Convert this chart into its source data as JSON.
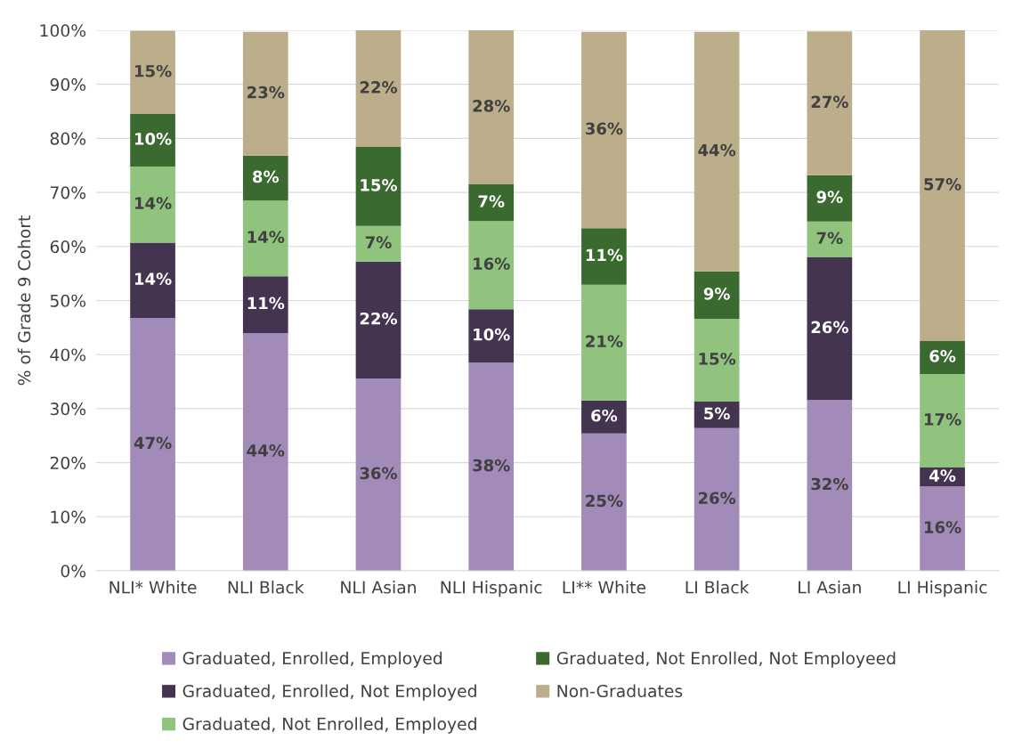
{
  "chart_data": {
    "type": "bar",
    "stacked": true,
    "ylabel": "% of Grade 9 Cohort",
    "categories": [
      "NLI* White",
      "NLI Black",
      "NLI Asian",
      "NLI Hispanic",
      "LI** White",
      "LI Black",
      "LI Asian",
      "LI Hispanic"
    ],
    "series": [
      {
        "name": "Graduated, Enrolled, Employed",
        "color": "#a28ab9",
        "values": [
          46.8,
          44.0,
          35.6,
          38.5,
          25.4,
          26.4,
          31.6,
          15.6
        ],
        "value_labels": [
          "47%",
          "44%",
          "36%",
          "38%",
          "25%",
          "26%",
          "32%",
          "16%"
        ]
      },
      {
        "name": "Graduated, Enrolled, Not Employed",
        "color": "#45344f",
        "values": [
          13.9,
          10.5,
          21.6,
          9.9,
          6.1,
          4.9,
          26.4,
          3.5
        ],
        "value_labels": [
          "14%",
          "11%",
          "22%",
          "10%",
          "6%",
          "5%",
          "26%",
          "4%"
        ]
      },
      {
        "name": "Graduated, Not Enrolled, Employed",
        "color": "#8fc37e",
        "values": [
          14.1,
          14.0,
          6.6,
          16.3,
          21.4,
          15.3,
          6.6,
          17.3
        ],
        "value_labels": [
          "14%",
          "14%",
          "7%",
          "16%",
          "21%",
          "15%",
          "7%",
          "17%"
        ]
      },
      {
        "name": "Graduated, Not Enrolled, Not Employeed",
        "color": "#3b6a30",
        "values": [
          9.7,
          8.3,
          14.6,
          6.8,
          10.5,
          8.8,
          8.6,
          6.1
        ],
        "value_labels": [
          "10%",
          "8%",
          "15%",
          "7%",
          "11%",
          "9%",
          "9%",
          "6%"
        ]
      },
      {
        "name": "Non-Graduates",
        "color": "#bcae8a",
        "values": [
          15.4,
          22.9,
          21.6,
          28.5,
          36.3,
          44.3,
          26.6,
          57.5
        ],
        "value_labels": [
          "15%",
          "23%",
          "22%",
          "28%",
          "36%",
          "44%",
          "27%",
          "57%"
        ]
      }
    ],
    "ylim": [
      0,
      100
    ],
    "yticks": [
      {
        "value": 0,
        "label": "0%"
      },
      {
        "value": 10,
        "label": "10%"
      },
      {
        "value": 20,
        "label": "20%"
      },
      {
        "value": 30,
        "label": "30%"
      },
      {
        "value": 40,
        "label": "40%"
      },
      {
        "value": 50,
        "label": "50%"
      },
      {
        "value": 60,
        "label": "60%"
      },
      {
        "value": 70,
        "label": "70%"
      },
      {
        "value": 80,
        "label": "80%"
      },
      {
        "value": 90,
        "label": "90%"
      },
      {
        "value": 100,
        "label": "100%"
      }
    ],
    "grid": "y",
    "legend": "bottom"
  }
}
